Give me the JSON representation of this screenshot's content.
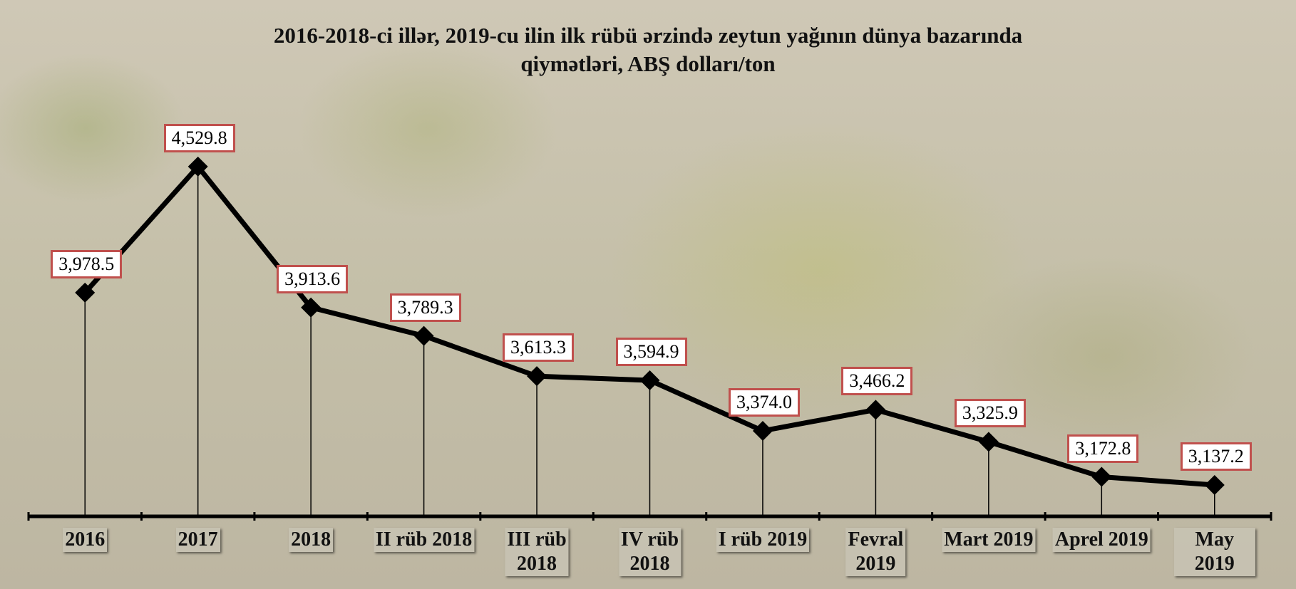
{
  "chart_data": {
    "type": "line",
    "title": "2016-2018-ci illər, 2019-cu ilin ilk rübü ərzində zeytun yağının dünya bazarında\nqiymətləri, ABŞ dolları/ton",
    "categories": [
      "2016",
      "2017",
      "2018",
      "II rüb 2018",
      "III rüb\n2018",
      "IV rüb\n2018",
      "I rüb 2019",
      "Fevral\n2019",
      "Mart 2019",
      "Aprel 2019",
      "May 2019"
    ],
    "values": [
      3978.5,
      4529.8,
      3913.6,
      3789.3,
      3613.3,
      3594.9,
      3374.0,
      3466.2,
      3325.9,
      3172.8,
      3137.2
    ],
    "value_labels": [
      "3,978.5",
      "4,529.8",
      "3,913.6",
      "3,789.3",
      "3,613.3",
      "3,594.9",
      "3,374.0",
      "3,466.2",
      "3,325.9",
      "3,172.8",
      "3,137.2"
    ],
    "color": "#000000",
    "label_border_color": "#c0504d",
    "ylim": [
      3000,
      5000
    ],
    "drop_lines": true
  }
}
